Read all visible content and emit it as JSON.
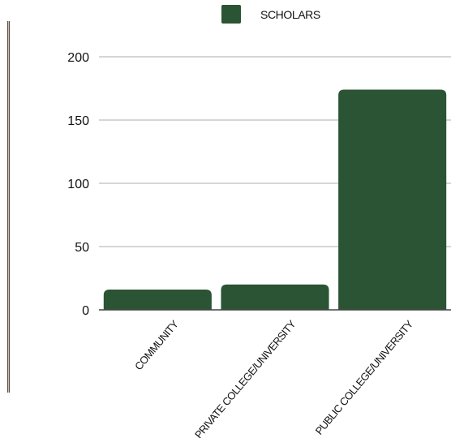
{
  "chart_data": {
    "type": "bar",
    "categories": [
      "COMMUNITY",
      "PRIVATE COLLEGE/UNIVERSITY",
      "PUBLIC COLLEGE/UNIVERSITY"
    ],
    "series": [
      {
        "name": "SCHOLARS",
        "values": [
          16,
          20,
          174
        ]
      }
    ],
    "ylim": [
      0,
      200
    ],
    "yticks": [
      "0",
      "50",
      "100",
      "150",
      "200"
    ],
    "grid": true,
    "legend": "top-center",
    "colors": {
      "bar": "#2b5434",
      "grid": "#c8c8c8",
      "axis": "#444444"
    }
  }
}
